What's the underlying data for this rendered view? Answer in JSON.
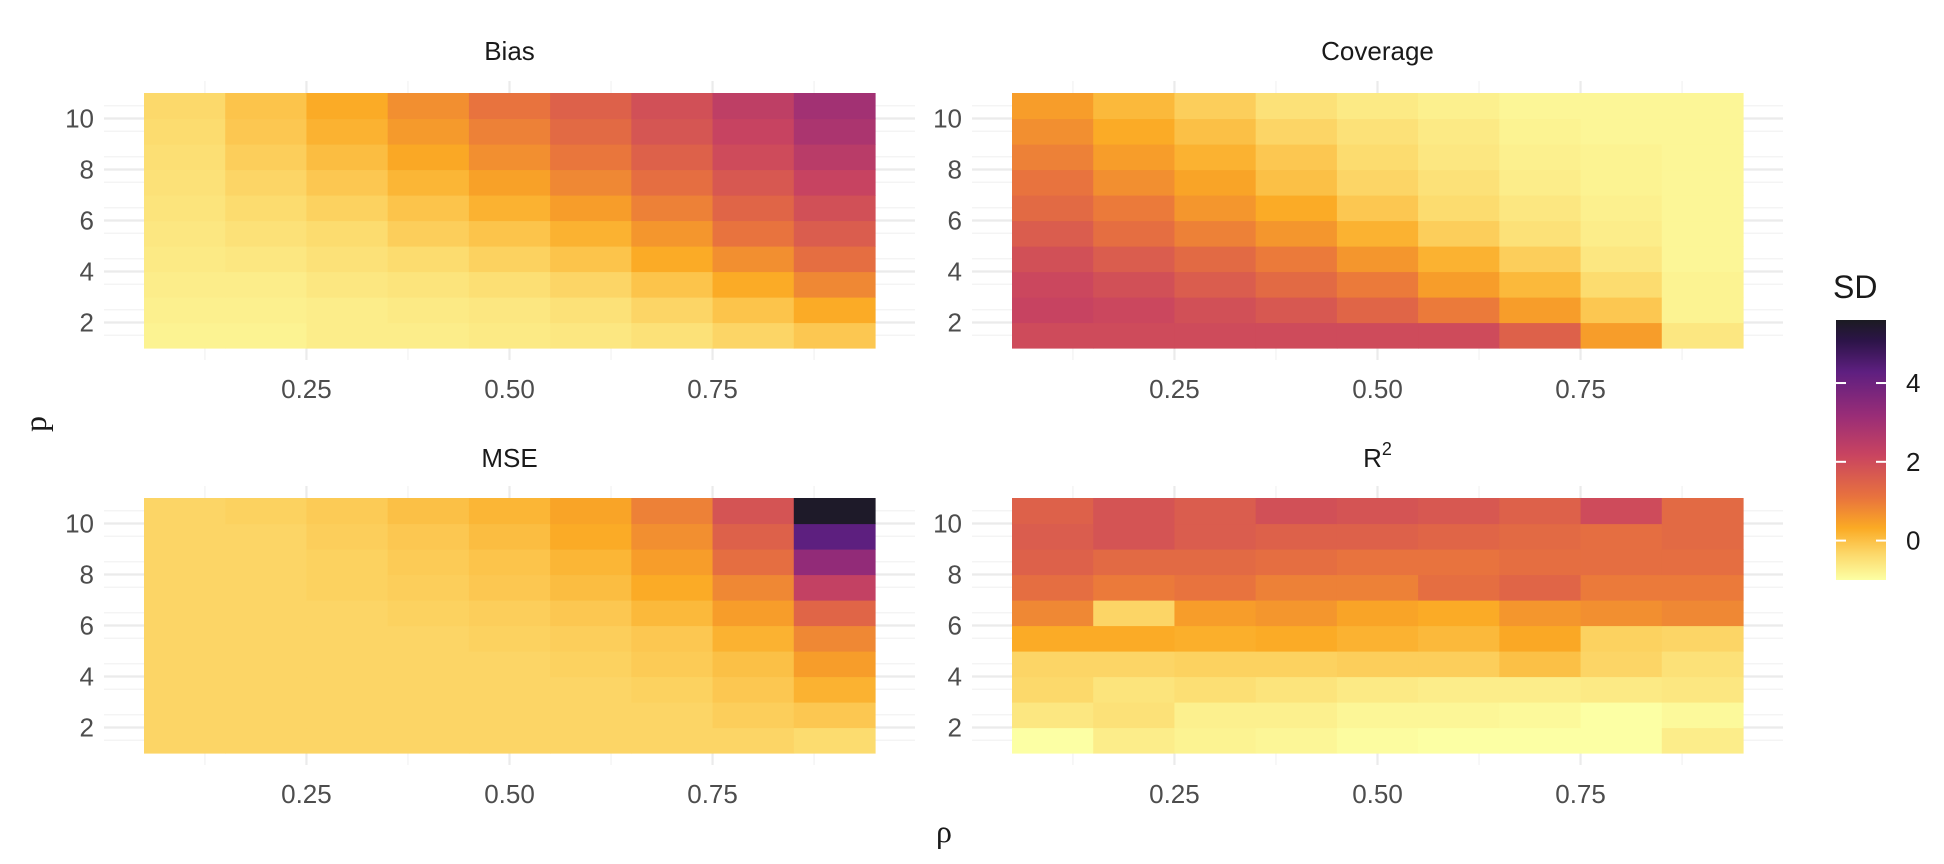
{
  "chart_data": {
    "type": "heatmap",
    "x_axis_label": "ρ",
    "y_axis_label": "p",
    "x": [
      0.1,
      0.2,
      0.3,
      0.4,
      0.5,
      0.6,
      0.7,
      0.8,
      0.9
    ],
    "y": [
      1.5,
      2.5,
      3.5,
      4.5,
      5.5,
      6.5,
      7.5,
      8.5,
      9.5,
      10.5
    ],
    "x_ticks": [
      "0.25",
      "0.50",
      "0.75"
    ],
    "x_tick_values": [
      0.25,
      0.5,
      0.75
    ],
    "y_ticks": [
      "2",
      "4",
      "6",
      "8",
      "10"
    ],
    "y_tick_values": [
      2,
      4,
      6,
      8,
      10
    ],
    "legend": {
      "title": "SD",
      "labels": [
        "0",
        "2",
        "4"
      ],
      "values": [
        0,
        2,
        4
      ],
      "range": [
        -1,
        5.6
      ]
    },
    "panels": [
      {
        "title": "Bias",
        "title_sup": "",
        "values": [
          [
            -0.8,
            -0.8,
            -0.7,
            -0.7,
            -0.65,
            -0.6,
            -0.5,
            -0.3,
            -0.1
          ],
          [
            -0.75,
            -0.75,
            -0.7,
            -0.65,
            -0.6,
            -0.5,
            -0.3,
            -0.05,
            0.3
          ],
          [
            -0.7,
            -0.7,
            -0.6,
            -0.55,
            -0.45,
            -0.3,
            -0.05,
            0.3,
            0.8
          ],
          [
            -0.65,
            -0.6,
            -0.5,
            -0.4,
            -0.25,
            -0.05,
            0.3,
            0.7,
            1.2
          ],
          [
            -0.6,
            -0.5,
            -0.4,
            -0.2,
            -0.05,
            0.2,
            0.6,
            1.1,
            1.6
          ],
          [
            -0.55,
            -0.4,
            -0.25,
            -0.05,
            0.2,
            0.5,
            0.9,
            1.4,
            1.9
          ],
          [
            -0.5,
            -0.3,
            -0.1,
            0.15,
            0.45,
            0.8,
            1.2,
            1.7,
            2.2
          ],
          [
            -0.45,
            -0.2,
            0.05,
            0.35,
            0.7,
            1.05,
            1.5,
            2.0,
            2.5
          ],
          [
            -0.4,
            -0.1,
            0.2,
            0.55,
            0.9,
            1.3,
            1.75,
            2.2,
            2.8
          ],
          [
            -0.35,
            -0.05,
            0.3,
            0.7,
            1.1,
            1.5,
            1.9,
            2.4,
            3.0
          ]
        ]
      },
      {
        "title": "Coverage",
        "title_sup": "",
        "values": [
          [
            2.0,
            2.0,
            2.0,
            2.0,
            2.0,
            2.0,
            1.5,
            0.5,
            -0.6
          ],
          [
            2.2,
            2.1,
            1.9,
            1.7,
            1.4,
            1.0,
            0.5,
            -0.1,
            -0.8
          ],
          [
            2.1,
            1.9,
            1.6,
            1.3,
            1.0,
            0.5,
            0.1,
            -0.4,
            -0.8
          ],
          [
            1.9,
            1.6,
            1.3,
            1.0,
            0.6,
            0.2,
            -0.2,
            -0.6,
            -0.85
          ],
          [
            1.6,
            1.2,
            0.9,
            0.6,
            0.2,
            -0.2,
            -0.5,
            -0.7,
            -0.85
          ],
          [
            1.3,
            1.0,
            0.6,
            0.3,
            -0.1,
            -0.4,
            -0.6,
            -0.75,
            -0.85
          ],
          [
            1.1,
            0.7,
            0.4,
            0.0,
            -0.3,
            -0.5,
            -0.7,
            -0.8,
            -0.85
          ],
          [
            0.9,
            0.5,
            0.2,
            -0.1,
            -0.4,
            -0.6,
            -0.75,
            -0.8,
            -0.85
          ],
          [
            0.7,
            0.3,
            0.0,
            -0.3,
            -0.5,
            -0.65,
            -0.8,
            -0.85,
            -0.85
          ],
          [
            0.5,
            0.1,
            -0.2,
            -0.5,
            -0.65,
            -0.75,
            -0.85,
            -0.85,
            -0.85
          ]
        ]
      },
      {
        "title": "MSE",
        "title_sup": "",
        "values": [
          [
            -0.3,
            -0.3,
            -0.3,
            -0.3,
            -0.3,
            -0.3,
            -0.3,
            -0.3,
            -0.4
          ],
          [
            -0.3,
            -0.3,
            -0.3,
            -0.3,
            -0.3,
            -0.3,
            -0.3,
            -0.2,
            -0.1
          ],
          [
            -0.3,
            -0.3,
            -0.3,
            -0.3,
            -0.3,
            -0.3,
            -0.25,
            -0.1,
            0.2
          ],
          [
            -0.3,
            -0.3,
            -0.3,
            -0.3,
            -0.3,
            -0.25,
            -0.15,
            0.0,
            0.5
          ],
          [
            -0.3,
            -0.3,
            -0.3,
            -0.3,
            -0.25,
            -0.2,
            -0.1,
            0.2,
            0.8
          ],
          [
            -0.3,
            -0.3,
            -0.3,
            -0.25,
            -0.2,
            -0.1,
            0.1,
            0.5,
            1.4
          ],
          [
            -0.3,
            -0.3,
            -0.25,
            -0.2,
            -0.1,
            0.05,
            0.3,
            0.8,
            2.3
          ],
          [
            -0.3,
            -0.3,
            -0.25,
            -0.15,
            -0.05,
            0.15,
            0.5,
            1.2,
            3.3
          ],
          [
            -0.3,
            -0.3,
            -0.2,
            -0.1,
            0.05,
            0.3,
            0.7,
            1.5,
            4.3
          ],
          [
            -0.3,
            -0.25,
            -0.15,
            0.0,
            0.15,
            0.4,
            0.9,
            1.8,
            5.5
          ]
        ]
      },
      {
        "title": "R",
        "title_sup": "2",
        "values": [
          [
            -1.1,
            -0.7,
            -0.8,
            -0.85,
            -0.95,
            -1.05,
            -1.3,
            -1.4,
            -0.7
          ],
          [
            -0.6,
            -0.5,
            -0.75,
            -0.75,
            -0.85,
            -0.85,
            -0.9,
            -1.0,
            -0.9
          ],
          [
            -0.35,
            -0.55,
            -0.45,
            -0.55,
            -0.65,
            -0.7,
            -0.7,
            -0.65,
            -0.6
          ],
          [
            -0.3,
            -0.3,
            -0.25,
            -0.25,
            -0.2,
            -0.2,
            0.0,
            -0.3,
            -0.5
          ],
          [
            0.3,
            0.3,
            0.25,
            0.3,
            0.2,
            0.1,
            0.35,
            -0.25,
            -0.3
          ],
          [
            0.8,
            -0.3,
            0.5,
            0.6,
            0.4,
            0.3,
            0.6,
            0.7,
            0.8
          ],
          [
            1.2,
            1.0,
            1.1,
            0.9,
            0.9,
            1.2,
            1.4,
            1.0,
            1.0
          ],
          [
            1.5,
            1.3,
            1.3,
            1.2,
            1.1,
            1.1,
            1.2,
            1.2,
            1.2
          ],
          [
            1.6,
            1.8,
            1.6,
            1.5,
            1.5,
            1.4,
            1.3,
            1.2,
            1.3
          ],
          [
            1.5,
            1.8,
            1.6,
            1.9,
            1.8,
            1.7,
            1.5,
            2.0,
            1.3
          ]
        ]
      }
    ]
  }
}
